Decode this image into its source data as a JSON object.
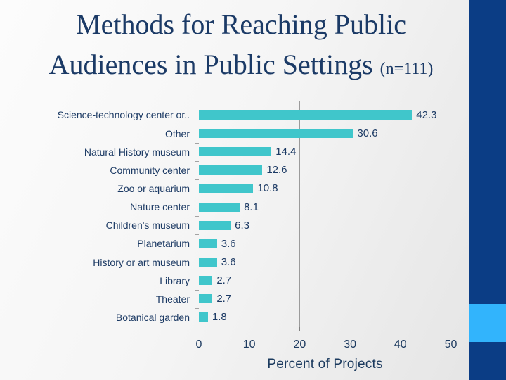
{
  "title": {
    "line1": "Methods for Reaching Public",
    "line2_main": "Audiences in Public Settings ",
    "line2_suffix": "(n=111)"
  },
  "chart_data": {
    "type": "bar",
    "orientation": "horizontal",
    "title": "Methods for Reaching Public Audiences in Public Settings (n=111)",
    "categories": [
      "Science-technology center or..",
      "Other",
      "Natural History museum",
      "Community center",
      "Zoo or aquarium",
      "Nature center",
      "Children's museum",
      "Planetarium",
      "History or art museum",
      "Library",
      "Theater",
      "Botanical garden"
    ],
    "values": [
      42.3,
      30.6,
      14.4,
      12.6,
      10.8,
      8.1,
      6.3,
      3.6,
      3.6,
      2.7,
      2.7,
      1.8
    ],
    "xlabel": "Percent of Projects",
    "ylabel": "",
    "xlim": [
      0,
      50
    ],
    "xticks": [
      0,
      10,
      20,
      30,
      40,
      50
    ],
    "gridlines_at": [
      20,
      40
    ],
    "grid": "partial-vertical",
    "legend": false,
    "data_labels": true
  },
  "colors": {
    "bar_teal": "#40C6CB",
    "text_navy": "#1C3A64",
    "title_navy": "#1B3A66",
    "sidebar_navy": "#0B3D85",
    "sidebar_light_blue": "#32B4FC",
    "gridline_gray": "#9B9B9B",
    "axis_gray": "#808080"
  }
}
